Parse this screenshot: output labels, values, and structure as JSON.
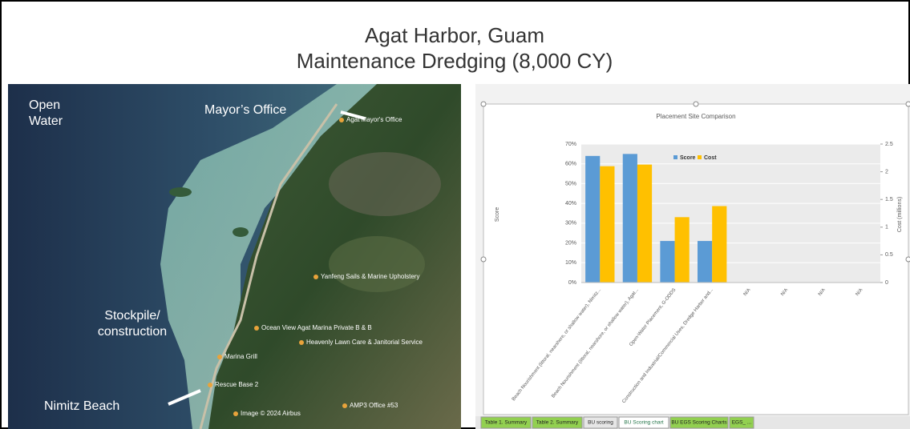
{
  "slide": {
    "title_lines": [
      "Agat Harbor, Guam",
      "Maintenance Dredging (8,000 CY)"
    ]
  },
  "map": {
    "labels": [
      {
        "lines": [
          "Open",
          "Water"
        ]
      },
      {
        "lines": [
          "Mayor’s Office"
        ]
      },
      {
        "lines": [
          "Stockpile/",
          "construction"
        ]
      },
      {
        "lines": [
          "Nimitz Beach"
        ]
      }
    ],
    "pois": [
      "Agat Mayor's Office",
      "Yanfeng Sails & Marine Upholstery",
      "Ocean View Agat Marina Private B & B",
      "Heavenly Lawn Care & Janitorial Service",
      "Marina Grill",
      "Rescue Base 2",
      "AMP3 Office #53",
      "Image © 2024 Airbus"
    ]
  },
  "chart_data": {
    "type": "bar",
    "title": "Placement Site Comparison",
    "y_label": "Score",
    "y2_label": "Cost (millions)",
    "categories": [
      "Beach Nourishment (littoral, nearshore, or shallow water), Nimitz...",
      "Beach Nourishment (littoral, nearshore, or shallow water), Agat...",
      "Open-Water Placement, G-ODDS",
      "Construction and Industrial/Commercial Uses, Dredge Harbor and...",
      "N/A",
      "N/A",
      "N/A",
      "N/A"
    ],
    "series": [
      {
        "name": "Score",
        "color": "#5b9bd5",
        "values": [
          64,
          65,
          21,
          21,
          null,
          null,
          null,
          null
        ]
      },
      {
        "name": "Cost",
        "color": "#ffc000",
        "axis": "y2",
        "values": [
          2.1,
          2.13,
          1.18,
          1.38,
          null,
          null,
          null,
          null
        ]
      }
    ],
    "ylim": [
      0,
      70
    ],
    "yticks": [
      {
        "value": 0,
        "label": "0%"
      },
      {
        "value": 10,
        "label": "10%"
      },
      {
        "value": 20,
        "label": "20%"
      },
      {
        "value": 30,
        "label": "30%"
      },
      {
        "value": 40,
        "label": "40%"
      },
      {
        "value": 50,
        "label": "50%"
      },
      {
        "value": 60,
        "label": "60%"
      },
      {
        "value": 70,
        "label": "70%"
      }
    ],
    "y2lim": [
      0,
      2.5
    ],
    "y2ticks": [
      0,
      0.5,
      1,
      1.5,
      2,
      2.5
    ],
    "grid": true,
    "legend": "top"
  },
  "sheet_tabs": [
    "Table 1. Summary",
    "Table 2. Summary",
    "BU scoring",
    "BU Scoring chart",
    "BU EGS Scoring Charts",
    "EGS_ ..."
  ]
}
